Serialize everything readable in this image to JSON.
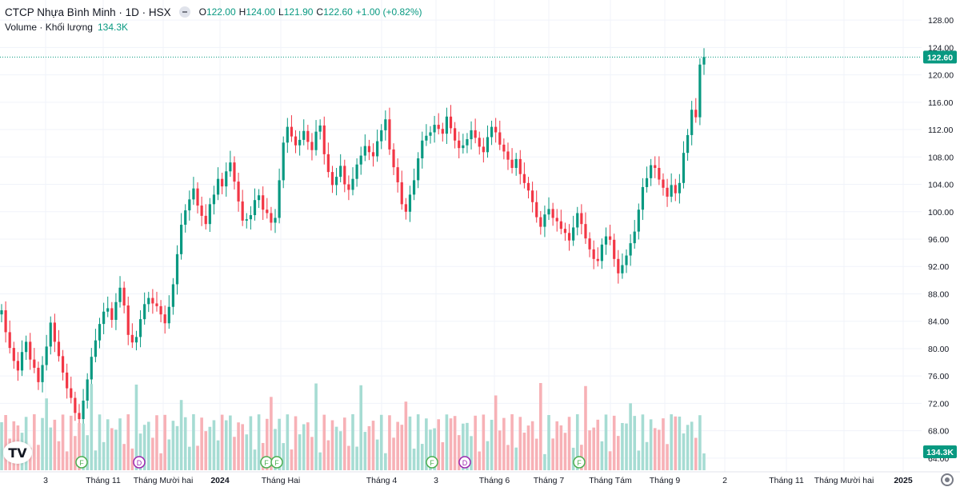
{
  "legend": {
    "symbol": "CTCP Nhựa Bình Minh · 1D · HSX",
    "open_key": "O",
    "open": "122.00",
    "high_key": "H",
    "high": "124.00",
    "low_key": "L",
    "low": "121.90",
    "close_key": "C",
    "close": "122.60",
    "change": "+1.00 (+0.82%)",
    "volume_label": "Volume · Khối lượng",
    "volume_value": "134.3K"
  },
  "price_axis": {
    "ticks": [
      "128.00",
      "124.00",
      "120.00",
      "116.00",
      "112.00",
      "108.00",
      "104.00",
      "100.00",
      "96.00",
      "92.00",
      "88.00",
      "84.00",
      "80.00",
      "76.00",
      "72.00",
      "68.00",
      "64.00"
    ],
    "last_price_label": "122.60",
    "volume_label": "134.3K"
  },
  "time_axis": {
    "labels": [
      "3",
      "Tháng 11",
      "Tháng Mười hai",
      "2024",
      "Tháng Hai",
      "Tháng 4",
      "3",
      "Tháng 6",
      "Tháng 7",
      "Tháng Tám",
      "Tháng 9",
      "2",
      "Tháng 11",
      "Tháng Mười hai",
      "2025"
    ]
  },
  "events": [
    "F",
    "D",
    "F",
    "F",
    "F",
    "D",
    "F"
  ],
  "logo_text": "TV",
  "colors": {
    "up": "#089981",
    "down": "#f23645",
    "vol_up": "#a6dcd3",
    "vol_down": "#f7b1b6",
    "grid": "#f0f3fa",
    "axis_text": "#131722",
    "dividend": "#9c27b0",
    "earnings": "#4caf50"
  },
  "chart_data": {
    "type": "candlestick",
    "title": "CTCP Nhựa Bình Minh · 1D · HSX",
    "ylim": [
      62,
      130
    ],
    "last": {
      "open": 122.0,
      "high": 124.0,
      "low": 121.9,
      "close": 122.6,
      "volume": "134.3K"
    },
    "series": [
      {
        "name": "close",
        "values": [
          85.6,
          82.4,
          80.1,
          78.2,
          76.8,
          79.5,
          81.0,
          78.4,
          77.2,
          75.1,
          77.6,
          80.3,
          83.8,
          81.0,
          78.9,
          76.5,
          74.2,
          72.8,
          70.6,
          69.7,
          72.4,
          75.5,
          78.8,
          81.2,
          83.6,
          85.4,
          85.9,
          84.2,
          86.8,
          88.9,
          86.3,
          82.0,
          80.9,
          81.7,
          84.3,
          86.5,
          87.4,
          86.6,
          86.2,
          85.0,
          83.7,
          86.1,
          89.4,
          93.8,
          98.1,
          100.2,
          101.8,
          103.4,
          100.9,
          99.4,
          98.2,
          101.1,
          102.5,
          104.8,
          103.7,
          105.9,
          107.2,
          104.4,
          101.5,
          98.7,
          98.9,
          99.5,
          101.7,
          102.4,
          100.3,
          99.8,
          98.4,
          99.1,
          104.6,
          110.1,
          112.4,
          111.0,
          109.7,
          110.5,
          111.8,
          110.2,
          109.0,
          111.7,
          112.6,
          108.4,
          105.8,
          103.9,
          105.1,
          106.7,
          104.0,
          103.2,
          104.8,
          106.9,
          108.2,
          109.6,
          108.7,
          108.1,
          110.3,
          111.9,
          113.5,
          109.1,
          106.5,
          104.3,
          101.1,
          100.0,
          102.5,
          104.6,
          107.8,
          110.4,
          111.1,
          111.6,
          112.7,
          112.1,
          111.4,
          113.9,
          112.2,
          110.4,
          109.3,
          109.7,
          110.6,
          111.9,
          110.8,
          109.5,
          108.7,
          110.9,
          112.4,
          111.6,
          109.8,
          108.8,
          107.6,
          106.4,
          107.7,
          105.5,
          104.2,
          103.1,
          101.4,
          99.2,
          97.8,
          99.6,
          100.4,
          99.1,
          98.6,
          97.5,
          96.9,
          95.8,
          97.7,
          99.8,
          98.2,
          96.1,
          94.5,
          93.1,
          92.8,
          95.2,
          96.4,
          95.9,
          93.1,
          91.0,
          92.2,
          93.6,
          95.4,
          97.1,
          100.3,
          103.6,
          104.9,
          106.8,
          106.4,
          104.7,
          103.5,
          102.2,
          103.9,
          102.7,
          104.2,
          108.6,
          111.2,
          114.9,
          113.8,
          121.5,
          122.6
        ]
      }
    ]
  }
}
